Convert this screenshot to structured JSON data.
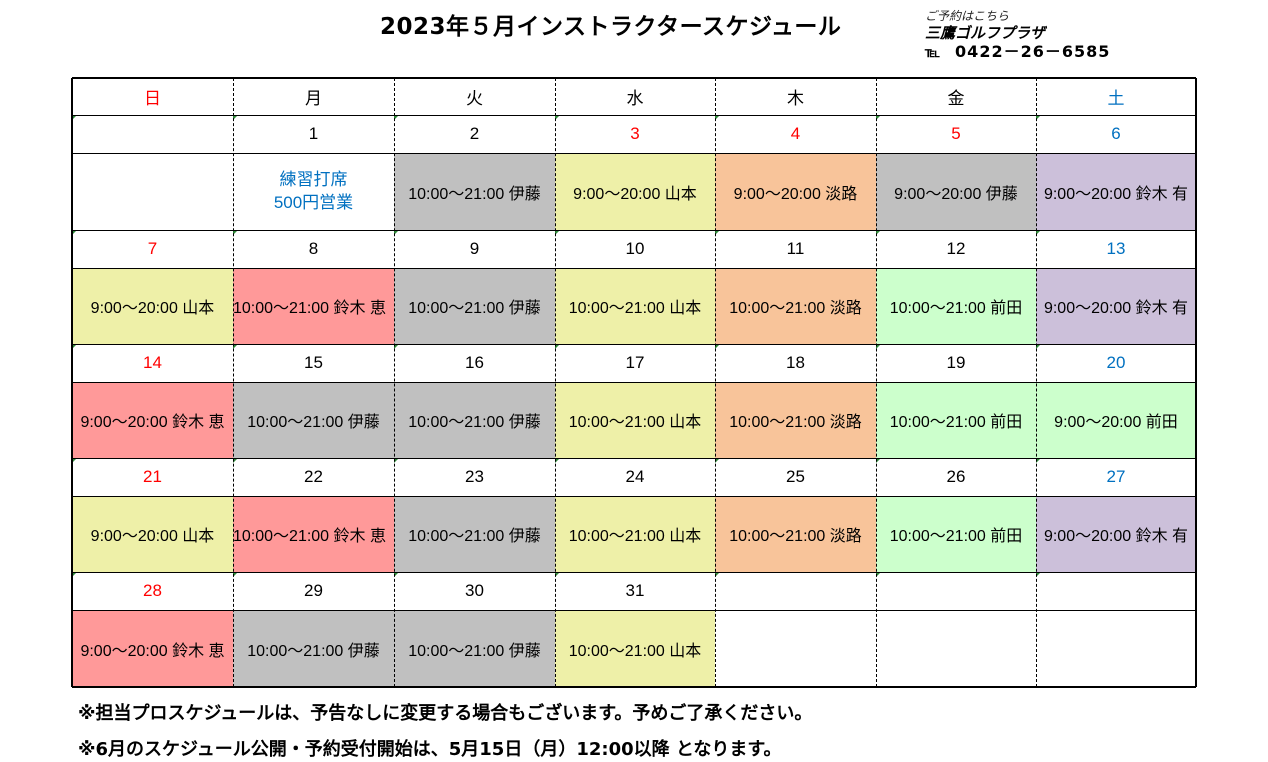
{
  "title": "2023年５月インストラクタースケジュール",
  "contact": {
    "note": "ご予約はこちら",
    "name": "三鷹ゴルフプラザ",
    "tel_label": "℡",
    "tel_number": "0422－26－6585"
  },
  "colors": {
    "sunday": "#ff0000",
    "saturday": "#0070c0",
    "holiday": "#ff0000",
    "special": "#0070c0",
    "yamamoto": "#eef0a8",
    "ito": "#c0c0c0",
    "awaji": "#f8c49a",
    "suzuki_yu": "#ccc0da",
    "suzuki_kei": "#ff9999",
    "maeda": "#ccffcc"
  },
  "weekdays": [
    "日",
    "月",
    "火",
    "水",
    "木",
    "金",
    "土"
  ],
  "weeks": [
    {
      "days": [
        "",
        "1",
        "2",
        "3",
        "4",
        "5",
        "6"
      ],
      "day_colors": [
        "sunday",
        "",
        "",
        "holiday",
        "holiday",
        "holiday",
        "saturday"
      ],
      "entries": [
        "",
        "練習打席\n500円営業",
        "10:00～21:00 伊藤",
        "9:00～20:00 山本",
        "9:00～20:00 淡路",
        "9:00～20:00 伊藤",
        "9:00～20:00 鈴木 有"
      ],
      "fills": [
        "",
        "",
        "ito",
        "yamamoto",
        "awaji",
        "ito",
        "suzuki_yu"
      ],
      "entry_colors": [
        "",
        "special",
        "",
        "",
        "",
        "",
        ""
      ]
    },
    {
      "days": [
        "7",
        "8",
        "9",
        "10",
        "11",
        "12",
        "13"
      ],
      "day_colors": [
        "sunday",
        "",
        "",
        "",
        "",
        "",
        "saturday"
      ],
      "entries": [
        "9:00～20:00 山本",
        "10:00～21:00 鈴木 恵",
        "10:00～21:00 伊藤",
        "10:00～21:00 山本",
        "10:00～21:00 淡路",
        "10:00～21:00 前田",
        "9:00～20:00 鈴木 有"
      ],
      "fills": [
        "yamamoto",
        "suzuki_kei",
        "ito",
        "yamamoto",
        "awaji",
        "maeda",
        "suzuki_yu"
      ]
    },
    {
      "days": [
        "14",
        "15",
        "16",
        "17",
        "18",
        "19",
        "20"
      ],
      "day_colors": [
        "sunday",
        "",
        "",
        "",
        "",
        "",
        "saturday"
      ],
      "entries": [
        "9:00～20:00 鈴木 恵",
        "10:00～21:00 伊藤",
        "10:00～21:00 伊藤",
        "10:00～21:00 山本",
        "10:00～21:00 淡路",
        "10:00～21:00 前田",
        "9:00～20:00 前田"
      ],
      "fills": [
        "suzuki_kei",
        "ito",
        "ito",
        "yamamoto",
        "awaji",
        "maeda",
        "maeda"
      ]
    },
    {
      "days": [
        "21",
        "22",
        "23",
        "24",
        "25",
        "26",
        "27"
      ],
      "day_colors": [
        "sunday",
        "",
        "",
        "",
        "",
        "",
        "saturday"
      ],
      "entries": [
        "9:00～20:00 山本",
        "10:00～21:00 鈴木 恵",
        "10:00～21:00 伊藤",
        "10:00～21:00 山本",
        "10:00～21:00 淡路",
        "10:00～21:00 前田",
        "9:00～20:00 鈴木 有"
      ],
      "fills": [
        "yamamoto",
        "suzuki_kei",
        "ito",
        "yamamoto",
        "awaji",
        "maeda",
        "suzuki_yu"
      ]
    },
    {
      "days": [
        "28",
        "29",
        "30",
        "31",
        "",
        "",
        ""
      ],
      "day_colors": [
        "sunday",
        "",
        "",
        "",
        "",
        "",
        ""
      ],
      "entries": [
        "9:00～20:00 鈴木 恵",
        "10:00～21:00 伊藤",
        "10:00～21:00 伊藤",
        "10:00～21:00 山本",
        "",
        "",
        ""
      ],
      "fills": [
        "suzuki_kei",
        "ito",
        "ito",
        "yamamoto",
        "",
        "",
        ""
      ]
    }
  ],
  "notes": [
    "※担当プロスケジュールは、予告なしに変更する場合もございます。予めご了承ください。",
    "※6月のスケジュール公開・予約受付開始は、5月15日（月）12:00以降 となります。"
  ]
}
